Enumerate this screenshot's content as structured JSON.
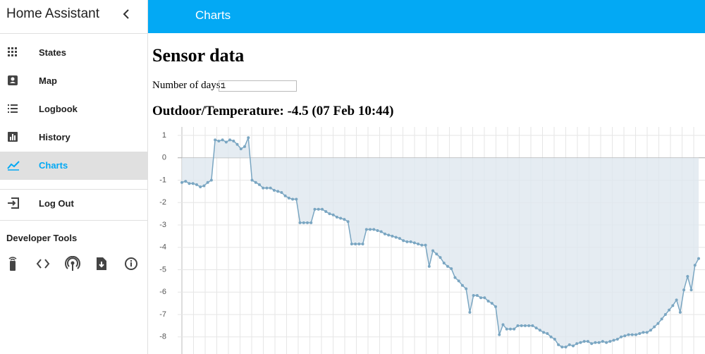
{
  "sidebar": {
    "title": "Home Assistant",
    "items": [
      "States",
      "Map",
      "Logbook",
      "History",
      "Charts"
    ],
    "logout": "Log Out",
    "dev_tools_title": "Developer Tools"
  },
  "header": {
    "title": "Charts"
  },
  "content": {
    "heading": "Sensor data",
    "days_label": "Number of days:",
    "days_value": "1",
    "chart_heading": "Outdoor/Temperature: -4.5 (07 Feb 10:44)"
  },
  "chart_data": {
    "type": "line",
    "color": "#7aa6c2",
    "fill": "#dfe7ef",
    "grid": true,
    "ylim": [
      -8.75,
      1.3
    ],
    "yticks": [
      1,
      0,
      -1,
      -2,
      -3,
      -4,
      -5,
      -6,
      -7,
      -8
    ],
    "values": [
      -1.1,
      -1.05,
      -1.15,
      -1.15,
      -1.2,
      -1.3,
      -1.25,
      -1.1,
      -1.0,
      0.8,
      0.75,
      0.8,
      0.7,
      0.8,
      0.75,
      0.6,
      0.4,
      0.5,
      0.9,
      -1.0,
      -1.1,
      -1.2,
      -1.35,
      -1.35,
      -1.35,
      -1.45,
      -1.5,
      -1.55,
      -1.7,
      -1.8,
      -1.85,
      -1.85,
      -2.9,
      -2.9,
      -2.9,
      -2.9,
      -2.3,
      -2.3,
      -2.3,
      -2.4,
      -2.5,
      -2.55,
      -2.65,
      -2.7,
      -2.75,
      -2.85,
      -3.85,
      -3.85,
      -3.85,
      -3.85,
      -3.2,
      -3.2,
      -3.2,
      -3.25,
      -3.3,
      -3.4,
      -3.45,
      -3.5,
      -3.55,
      -3.6,
      -3.7,
      -3.75,
      -3.75,
      -3.8,
      -3.85,
      -3.9,
      -3.9,
      -4.85,
      -4.15,
      -4.3,
      -4.45,
      -4.7,
      -4.85,
      -4.95,
      -5.35,
      -5.5,
      -5.7,
      -5.85,
      -6.9,
      -6.15,
      -6.15,
      -6.25,
      -6.25,
      -6.4,
      -6.5,
      -6.65,
      -7.9,
      -7.45,
      -7.65,
      -7.65,
      -7.65,
      -7.5,
      -7.5,
      -7.5,
      -7.5,
      -7.5,
      -7.6,
      -7.7,
      -7.8,
      -7.85,
      -8.0,
      -8.1,
      -8.35,
      -8.45,
      -8.45,
      -8.35,
      -8.4,
      -8.3,
      -8.25,
      -8.2,
      -8.2,
      -8.3,
      -8.25,
      -8.25,
      -8.2,
      -8.25,
      -8.2,
      -8.15,
      -8.1,
      -8.0,
      -7.95,
      -7.9,
      -7.9,
      -7.9,
      -7.85,
      -7.8,
      -7.8,
      -7.7,
      -7.55,
      -7.4,
      -7.2,
      -7.0,
      -6.8,
      -6.6,
      -6.35,
      -6.9,
      -5.9,
      -5.3,
      -5.9,
      -4.8,
      -4.5
    ]
  }
}
